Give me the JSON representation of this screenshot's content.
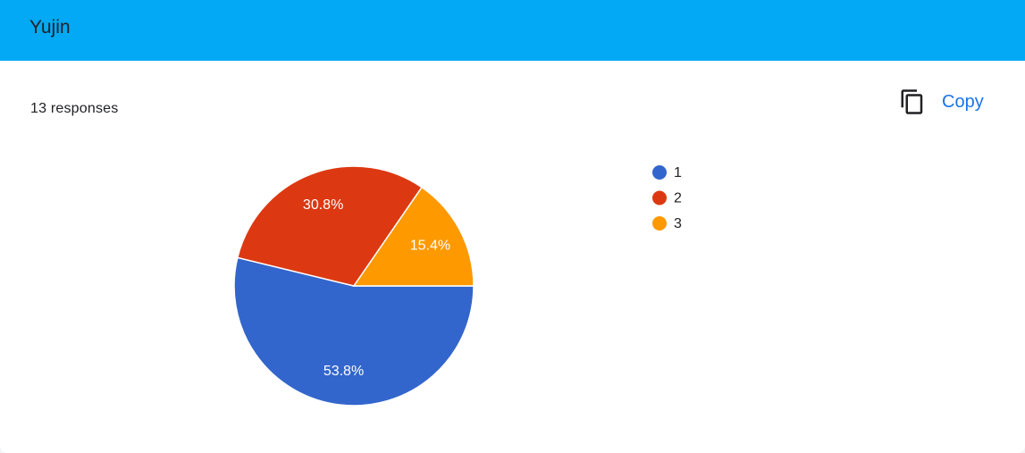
{
  "header": {
    "title": "Yujin"
  },
  "summary": {
    "responses": "13 responses",
    "copy": "Copy"
  },
  "chart_data": {
    "type": "pie",
    "categories": [
      "1",
      "2",
      "3"
    ],
    "values": [
      53.8,
      30.8,
      15.4
    ],
    "value_labels": [
      "53.8%",
      "30.8%",
      "15.4%"
    ],
    "colors": [
      "#3366cc",
      "#dc3912",
      "#ff9900"
    ],
    "legend": "right"
  }
}
